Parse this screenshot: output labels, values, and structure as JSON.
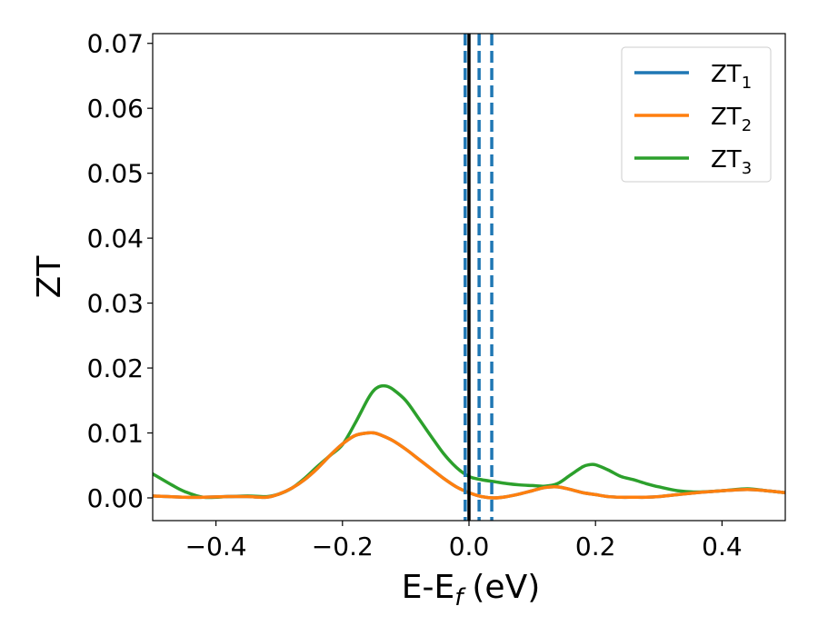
{
  "chart_data": {
    "type": "line",
    "xlabel": "E-E",
    "xlabel_sub": "f",
    "xlabel_unit": "(eV)",
    "ylabel": "ZT",
    "xlim": [
      -0.5,
      0.5
    ],
    "ylim": [
      -0.0035,
      0.0715
    ],
    "x_ticks": [
      -0.4,
      -0.2,
      0.0,
      0.2,
      0.4
    ],
    "x_tick_labels": [
      "−0.4",
      "−0.2",
      "0.0",
      "0.2",
      "0.4"
    ],
    "y_ticks": [
      0.0,
      0.01,
      0.02,
      0.03,
      0.04,
      0.05,
      0.06,
      0.07
    ],
    "y_tick_labels": [
      "0.00",
      "0.01",
      "0.02",
      "0.03",
      "0.04",
      "0.05",
      "0.06",
      "0.07"
    ],
    "grid": false,
    "legend_position": "top-right",
    "series": [
      {
        "name": "ZT",
        "sub": "1",
        "color": "#1f77b4",
        "x": [
          -0.5,
          -0.45,
          -0.42,
          -0.38,
          -0.35,
          -0.32,
          -0.3,
          -0.28,
          -0.26,
          -0.24,
          -0.22,
          -0.2,
          -0.18,
          -0.16,
          -0.15,
          -0.14,
          -0.12,
          -0.1,
          -0.08,
          -0.06,
          -0.04,
          -0.02,
          0.0,
          0.02,
          0.04,
          0.06,
          0.08,
          0.1,
          0.12,
          0.14,
          0.16,
          0.18,
          0.2,
          0.22,
          0.24,
          0.26,
          0.28,
          0.3,
          0.33,
          0.36,
          0.4,
          0.44,
          0.47,
          0.5
        ],
        "y": [
          0.0003,
          0.0001,
          0.0001,
          0.0002,
          0.0002,
          0.0001,
          0.0006,
          0.0015,
          0.0028,
          0.0045,
          0.0065,
          0.0083,
          0.0096,
          0.01,
          0.01,
          0.0097,
          0.0088,
          0.0075,
          0.006,
          0.0045,
          0.003,
          0.0017,
          0.0008,
          0.0002,
          0.0,
          0.0002,
          0.0006,
          0.0011,
          0.0016,
          0.0017,
          0.0013,
          0.0008,
          0.0005,
          0.0002,
          0.0001,
          0.0001,
          0.0001,
          0.0002,
          0.0005,
          0.0008,
          0.0011,
          0.0013,
          0.0011,
          0.0008
        ]
      },
      {
        "name": "ZT",
        "sub": "2",
        "color": "#ff7f0e",
        "x": [
          -0.5,
          -0.45,
          -0.42,
          -0.38,
          -0.35,
          -0.32,
          -0.3,
          -0.28,
          -0.26,
          -0.24,
          -0.22,
          -0.2,
          -0.18,
          -0.16,
          -0.15,
          -0.14,
          -0.12,
          -0.1,
          -0.08,
          -0.06,
          -0.04,
          -0.02,
          0.0,
          0.02,
          0.04,
          0.06,
          0.08,
          0.1,
          0.12,
          0.14,
          0.16,
          0.18,
          0.2,
          0.22,
          0.24,
          0.26,
          0.28,
          0.3,
          0.33,
          0.36,
          0.4,
          0.44,
          0.47,
          0.5
        ],
        "y": [
          0.0003,
          0.0001,
          0.0001,
          0.0002,
          0.0002,
          0.0001,
          0.0006,
          0.0015,
          0.0028,
          0.0045,
          0.0065,
          0.0083,
          0.0096,
          0.01,
          0.01,
          0.0097,
          0.0088,
          0.0075,
          0.006,
          0.0045,
          0.003,
          0.0017,
          0.0008,
          0.0002,
          0.0,
          0.0002,
          0.0006,
          0.0011,
          0.0016,
          0.0017,
          0.0013,
          0.0008,
          0.0005,
          0.0002,
          0.0001,
          0.0001,
          0.0001,
          0.0002,
          0.0005,
          0.0008,
          0.0011,
          0.0013,
          0.0011,
          0.0008
        ]
      },
      {
        "name": "ZT",
        "sub": "3",
        "color": "#2ca02c",
        "x": [
          -0.5,
          -0.47,
          -0.45,
          -0.42,
          -0.38,
          -0.35,
          -0.32,
          -0.3,
          -0.28,
          -0.26,
          -0.24,
          -0.22,
          -0.2,
          -0.18,
          -0.16,
          -0.15,
          -0.14,
          -0.13,
          -0.12,
          -0.1,
          -0.08,
          -0.06,
          -0.04,
          -0.02,
          0.0,
          0.02,
          0.04,
          0.06,
          0.08,
          0.1,
          0.12,
          0.14,
          0.16,
          0.18,
          0.19,
          0.2,
          0.22,
          0.24,
          0.26,
          0.28,
          0.3,
          0.33,
          0.36,
          0.4,
          0.44,
          0.47,
          0.5
        ],
        "y": [
          0.0037,
          0.002,
          0.001,
          0.0001,
          0.0002,
          0.0003,
          0.0002,
          0.0006,
          0.0015,
          0.003,
          0.0048,
          0.0065,
          0.0082,
          0.0115,
          0.0152,
          0.0166,
          0.0172,
          0.0172,
          0.0167,
          0.015,
          0.0123,
          0.0095,
          0.0068,
          0.0047,
          0.0033,
          0.0028,
          0.0025,
          0.0022,
          0.002,
          0.0019,
          0.0018,
          0.0022,
          0.0035,
          0.0048,
          0.0051,
          0.0051,
          0.0043,
          0.0033,
          0.0028,
          0.0022,
          0.0017,
          0.0011,
          0.0009,
          0.0011,
          0.0014,
          0.0011,
          0.0008
        ]
      }
    ],
    "vertical_lines": [
      {
        "x": -0.006,
        "style": "dashed",
        "color": "#1f77b4"
      },
      {
        "x": 0.0,
        "style": "solid",
        "color": "#000000"
      },
      {
        "x": 0.016,
        "style": "dashed",
        "color": "#1f77b4"
      },
      {
        "x": 0.036,
        "style": "dashed",
        "color": "#1f77b4"
      }
    ]
  }
}
